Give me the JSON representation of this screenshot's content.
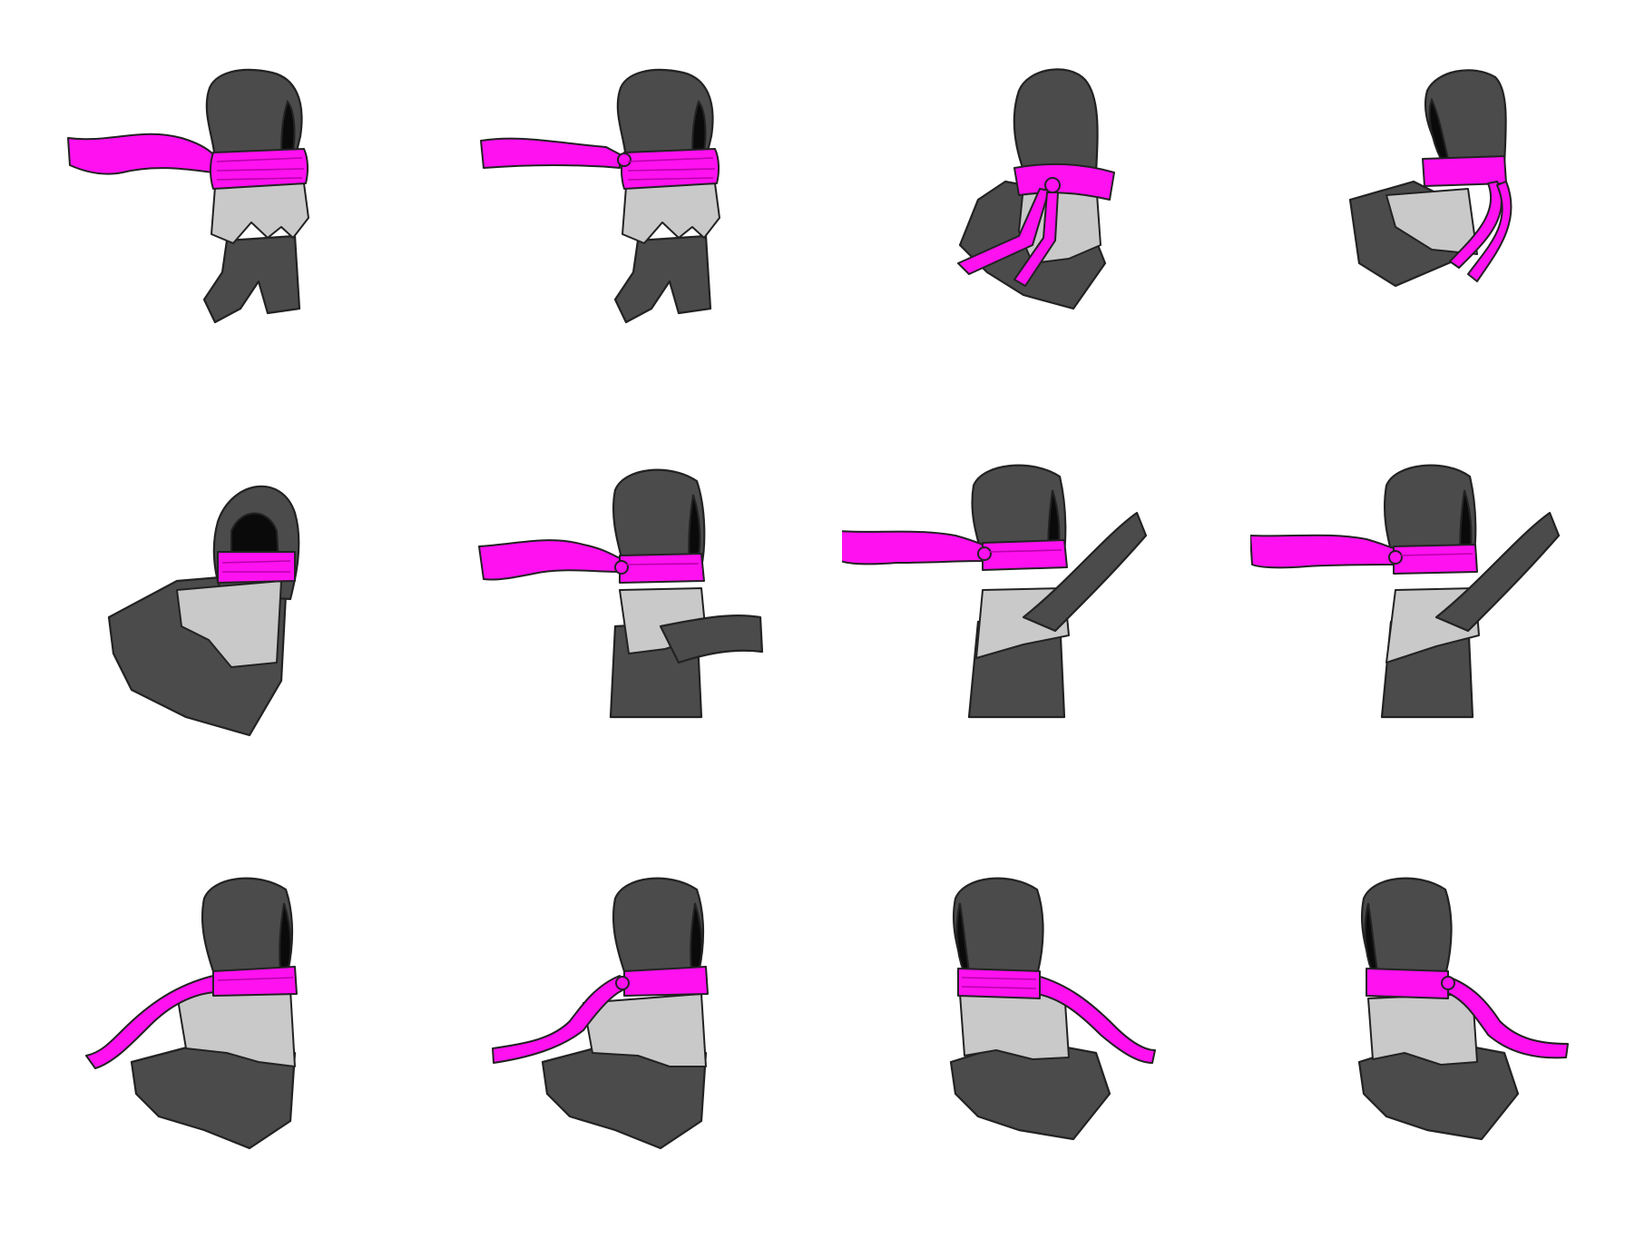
{
  "sprite_sheet": {
    "columns": 4,
    "rows": 3,
    "colors": {
      "background": "#ffffff",
      "cloak": "#4b4b4b",
      "outline": "#222222",
      "shadow": "#0a0a0a",
      "vest": "#c9c9c9",
      "sash": "#ff11f0",
      "sash_fold": "#b800aa"
    },
    "frames": [
      {
        "row": 0,
        "col": 0,
        "pose": "idle-side-tail-left"
      },
      {
        "row": 0,
        "col": 1,
        "pose": "idle-side-tail-left-knot"
      },
      {
        "row": 0,
        "col": 2,
        "pose": "turn-front-tails-down"
      },
      {
        "row": 0,
        "col": 3,
        "pose": "turn-back-tails-down"
      },
      {
        "row": 1,
        "col": 0,
        "pose": "hood-front"
      },
      {
        "row": 1,
        "col": 1,
        "pose": "arm-extend-horizontal"
      },
      {
        "row": 1,
        "col": 2,
        "pose": "arm-raise-diagonal"
      },
      {
        "row": 1,
        "col": 3,
        "pose": "arm-raise-diagonal-2"
      },
      {
        "row": 2,
        "col": 0,
        "pose": "run-tail-down-left"
      },
      {
        "row": 2,
        "col": 1,
        "pose": "run-knot-tail-left"
      },
      {
        "row": 2,
        "col": 2,
        "pose": "run-tail-right"
      },
      {
        "row": 2,
        "col": 3,
        "pose": "run-knot-tail-right"
      }
    ]
  }
}
